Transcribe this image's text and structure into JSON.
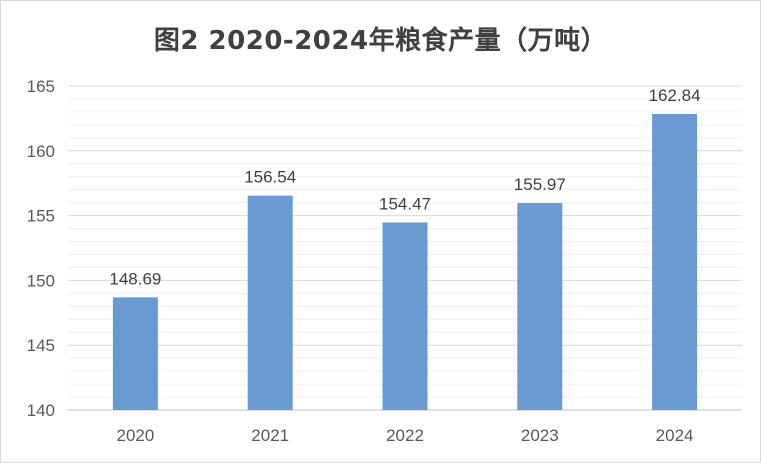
{
  "chart_data": {
    "type": "bar",
    "title": "图2 2020-2024年粮食产量（万吨）",
    "categories": [
      "2020",
      "2021",
      "2022",
      "2023",
      "2024"
    ],
    "values": [
      148.69,
      156.54,
      154.47,
      155.97,
      162.84
    ],
    "data_labels": [
      "148.69",
      "156.54",
      "154.47",
      "155.97",
      "162.84"
    ],
    "ylim": [
      140,
      165
    ],
    "yticks": [
      140,
      145,
      150,
      155,
      160,
      165
    ],
    "xlabel": "",
    "ylabel": "",
    "grid": true,
    "legend": "none",
    "colors": {
      "bar": "#6a9ad2",
      "grid": "#d9d9d9",
      "axis": "#bfbfbf"
    }
  }
}
